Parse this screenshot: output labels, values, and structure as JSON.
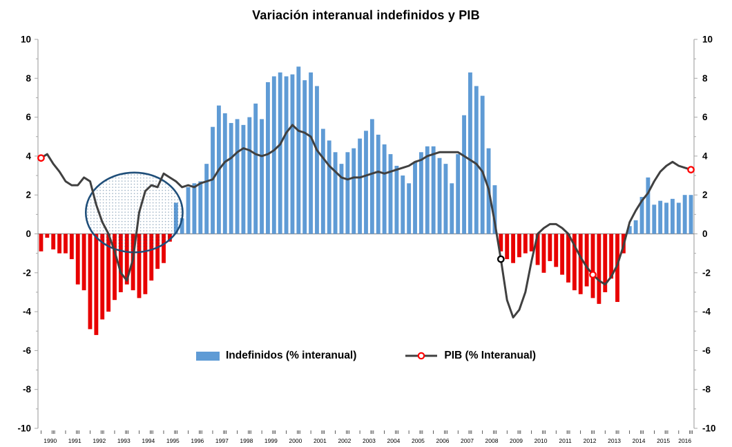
{
  "title": "Variación interanual indefinidos y PIB",
  "legend": {
    "items": [
      {
        "label": "Indefinidos (% interanual)"
      },
      {
        "label": "PIB (% Interanual)"
      }
    ]
  },
  "colors": {
    "bar_positive": "#5F9BD5",
    "bar_negative": "#E80000",
    "line": "#404040",
    "marker_red": "#FF0000",
    "marker_black": "#000000",
    "axis": "#A6A6A6",
    "zero_line": "#8C8C8C",
    "ellipse": "#1F4E79",
    "text": "#000000"
  },
  "chart_data": {
    "type": "bar+line",
    "frequency": "quarterly",
    "x_start": "1990-Q1",
    "x_end": "2016-Q3",
    "x_years": [
      1990,
      1991,
      1992,
      1993,
      1994,
      1995,
      1996,
      1997,
      1998,
      1999,
      2000,
      2001,
      2002,
      2003,
      2004,
      2005,
      2006,
      2007,
      2008,
      2009,
      2010,
      2011,
      2012,
      2013,
      2014,
      2015,
      2016
    ],
    "quarter_tick_labels": [
      "I",
      "III"
    ],
    "ylim": [
      -10,
      10
    ],
    "y_ticks": [
      10,
      8,
      6,
      4,
      2,
      0,
      -2,
      -4,
      -6,
      -8,
      -10
    ],
    "series": [
      {
        "name": "Indefinidos (% interanual)",
        "type": "bar",
        "values": [
          -0.9,
          -0.2,
          -0.8,
          -1.0,
          -1.0,
          -1.3,
          -2.6,
          -2.9,
          -4.9,
          -5.2,
          -4.4,
          -4.0,
          -3.4,
          -3.0,
          -2.6,
          -2.9,
          -3.3,
          -3.1,
          -2.4,
          -1.8,
          -1.5,
          -0.4,
          1.6,
          0.8,
          2.4,
          2.6,
          2.7,
          3.6,
          5.5,
          6.6,
          6.2,
          5.7,
          5.9,
          5.6,
          6.0,
          6.7,
          5.9,
          7.8,
          8.1,
          8.3,
          8.1,
          8.2,
          8.6,
          7.9,
          8.3,
          7.6,
          5.4,
          4.8,
          4.2,
          3.6,
          4.2,
          4.4,
          4.9,
          5.3,
          5.9,
          5.1,
          4.6,
          4.1,
          3.5,
          3.0,
          2.6,
          3.7,
          4.2,
          4.5,
          4.5,
          3.9,
          3.6,
          2.6,
          4.1,
          6.1,
          8.3,
          7.6,
          7.1,
          4.4,
          2.5,
          -0.9,
          -1.3,
          -1.5,
          -1.2,
          -1.0,
          -0.9,
          -1.6,
          -2.0,
          -1.4,
          -1.7,
          -2.1,
          -2.5,
          -2.9,
          -3.1,
          -2.7,
          -3.3,
          -3.6,
          -3.0,
          -2.3,
          -3.5,
          -1.0,
          0.4,
          0.7,
          1.9,
          2.9,
          1.5,
          1.7,
          1.6,
          1.8,
          1.6,
          2.0,
          2.0
        ]
      },
      {
        "name": "PIB (% Interanual)",
        "type": "line",
        "values": [
          3.9,
          4.1,
          3.6,
          3.2,
          2.7,
          2.5,
          2.5,
          2.9,
          2.7,
          1.5,
          0.6,
          0.0,
          -0.9,
          -2.0,
          -2.4,
          -1.3,
          1.1,
          2.2,
          2.5,
          2.4,
          3.1,
          2.9,
          2.7,
          2.4,
          2.5,
          2.4,
          2.6,
          2.7,
          2.8,
          3.3,
          3.7,
          3.9,
          4.2,
          4.4,
          4.3,
          4.1,
          4.0,
          4.1,
          4.3,
          4.6,
          5.2,
          5.6,
          5.3,
          5.2,
          5.0,
          4.3,
          3.9,
          3.5,
          3.2,
          2.9,
          2.8,
          2.9,
          2.9,
          3.0,
          3.1,
          3.2,
          3.1,
          3.2,
          3.3,
          3.4,
          3.5,
          3.7,
          3.8,
          4.0,
          4.1,
          4.2,
          4.2,
          4.2,
          4.2,
          4.0,
          3.8,
          3.6,
          3.2,
          2.3,
          0.6,
          -1.3,
          -3.4,
          -4.3,
          -3.9,
          -3.0,
          -1.4,
          0.0,
          0.3,
          0.5,
          0.5,
          0.3,
          0.0,
          -0.6,
          -1.2,
          -1.7,
          -2.1,
          -2.4,
          -2.6,
          -2.2,
          -1.6,
          -0.6,
          0.6,
          1.2,
          1.7,
          2.1,
          2.7,
          3.2,
          3.5,
          3.7,
          3.5,
          3.4,
          3.3
        ],
        "markers": [
          {
            "index": 0,
            "color": "#FF0000"
          },
          {
            "index": 75,
            "color": "#000000"
          },
          {
            "index": 90,
            "color": "#FF0000"
          },
          {
            "index": 106,
            "color": "#FF0000"
          }
        ]
      }
    ],
    "annotation_ellipse": {
      "center_index": 15.2,
      "center_value": 1.1,
      "rx_quarters": 7.9,
      "ry_value": 2.05
    }
  }
}
